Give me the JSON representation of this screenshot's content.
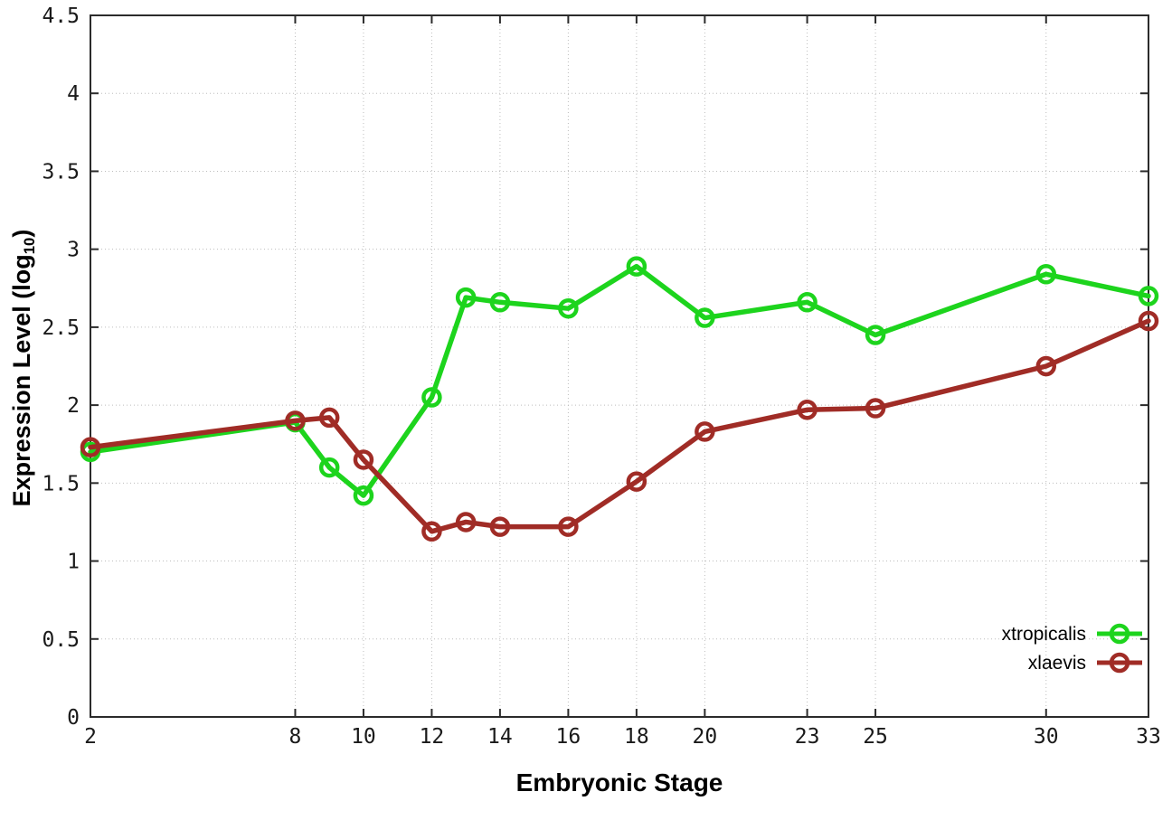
{
  "chart_data": {
    "type": "line",
    "title": "",
    "xlabel": "Embryonic Stage",
    "ylabel": "Expression Level (log10)",
    "xlim": [
      2,
      33
    ],
    "ylim": [
      0,
      4.5
    ],
    "grid": true,
    "legend_position": "bottom-right",
    "marker": "open-circle",
    "x": [
      2,
      8,
      9,
      10,
      12,
      13,
      14,
      16,
      18,
      20,
      23,
      25,
      30,
      33
    ],
    "series": [
      {
        "name": "xtropicalis",
        "color": "#1dd41d",
        "values": [
          1.7,
          1.89,
          1.6,
          1.42,
          2.05,
          2.69,
          2.66,
          2.62,
          2.89,
          2.56,
          2.66,
          2.45,
          2.84,
          2.7
        ]
      },
      {
        "name": "xlaevis",
        "color": "#a02c26",
        "values": [
          1.73,
          1.9,
          1.92,
          1.65,
          1.19,
          1.25,
          1.22,
          1.22,
          1.51,
          1.83,
          1.97,
          1.98,
          2.25,
          2.54
        ]
      }
    ],
    "x_ticks": [
      {
        "v": 2,
        "label": "2"
      },
      {
        "v": 8,
        "label": "8"
      },
      {
        "v": 10,
        "label": "10"
      },
      {
        "v": 12,
        "label": "12"
      },
      {
        "v": 14,
        "label": "14"
      },
      {
        "v": 16,
        "label": "16"
      },
      {
        "v": 18,
        "label": "18"
      },
      {
        "v": 20,
        "label": "20"
      },
      {
        "v": 23,
        "label": "23"
      },
      {
        "v": 25,
        "label": "25"
      },
      {
        "v": 30,
        "label": "30"
      },
      {
        "v": 33,
        "label": "33"
      }
    ],
    "y_ticks": [
      {
        "v": 0,
        "label": "0"
      },
      {
        "v": 0.5,
        "label": "0.5"
      },
      {
        "v": 1,
        "label": "1"
      },
      {
        "v": 1.5,
        "label": "1.5"
      },
      {
        "v": 2,
        "label": "2"
      },
      {
        "v": 2.5,
        "label": "2.5"
      },
      {
        "v": 3,
        "label": "3"
      },
      {
        "v": 3.5,
        "label": "3.5"
      },
      {
        "v": 4,
        "label": "4"
      },
      {
        "v": 4.5,
        "label": "4.5"
      }
    ]
  },
  "x_axis": {
    "title": "Embryonic Stage"
  },
  "y_axis": {
    "title_prefix": "Expression Level (log",
    "title_sub": "10",
    "title_suffix": ")"
  },
  "colors": {
    "background": "#ffffff",
    "border": "#2b2b2b",
    "grid": "#bdbdbd",
    "tick_text": "#1a1a1a"
  }
}
